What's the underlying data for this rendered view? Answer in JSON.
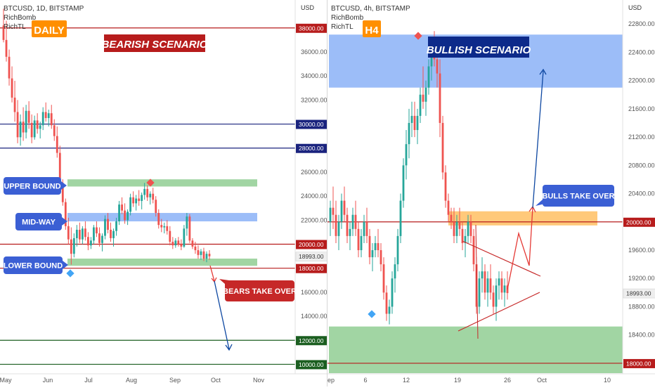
{
  "chart_data": [
    {
      "type": "candlestick",
      "symbol_line": "BTCUSD, 1D, BITSTAMP",
      "indicators": [
        "RichBomb",
        "RichTL"
      ],
      "timeframe_badge": "DAILY",
      "scenario_label": "BEARISH SCENARIO",
      "price_scale_unit": "USD",
      "x_ticks": [
        "May",
        "Jun",
        "Jul",
        "Aug",
        "Sep",
        "Oct",
        "Nov"
      ],
      "y_ticks": [
        10000,
        12000,
        14000,
        16000,
        18000,
        20000,
        22000,
        24000,
        26000,
        28000,
        30000,
        32000,
        34000,
        36000,
        38000
      ],
      "ylim": [
        9500,
        39800
      ],
      "price_lines": [
        {
          "price": 38000,
          "color": "#b71c1c",
          "label": "38000.00"
        },
        {
          "price": 30000,
          "color": "#1a237e",
          "label": "30000.00"
        },
        {
          "price": 28000,
          "color": "#1a237e",
          "label": "28000.00"
        },
        {
          "price": 20000,
          "color": "#b71c1c",
          "label": "20000.00"
        },
        {
          "price": 18000,
          "color": "#b71c1c",
          "label": "18000.00"
        },
        {
          "price": 12000,
          "color": "#1b5e20",
          "label": "12000.00"
        },
        {
          "price": 10000,
          "color": "#1b5e20",
          "label": "10000.00"
        }
      ],
      "last_price": "18993.00",
      "zones": [
        {
          "name": "upper",
          "from": 24800,
          "to": 25400,
          "color": "#81c784"
        },
        {
          "name": "mid",
          "from": 21900,
          "to": 22600,
          "color": "#7ba7f5"
        },
        {
          "name": "lower",
          "from": 18200,
          "to": 18800,
          "color": "#81c784"
        }
      ],
      "callouts": [
        "UPPER BOUND",
        "MID-WAY",
        "LOWER BOUND",
        "BEARS TAKE OVER"
      ],
      "candles": [
        [
          38200,
          39600,
          36800,
          37000
        ],
        [
          37000,
          38600,
          35200,
          35600
        ],
        [
          35600,
          36200,
          33200,
          33800
        ],
        [
          33800,
          34800,
          31800,
          32200
        ],
        [
          32200,
          33600,
          30200,
          31000
        ],
        [
          31000,
          32000,
          28400,
          28900
        ],
        [
          28900,
          30800,
          28200,
          30200
        ],
        [
          30200,
          31400,
          28600,
          29300
        ],
        [
          29300,
          31600,
          28800,
          31100
        ],
        [
          31100,
          31900,
          29600,
          30100
        ],
        [
          30100,
          30800,
          28400,
          28900
        ],
        [
          28900,
          30700,
          28700,
          30300
        ],
        [
          30300,
          30900,
          29200,
          29600
        ],
        [
          29600,
          30200,
          28800,
          29900
        ],
        [
          29900,
          31400,
          29500,
          31000
        ],
        [
          31000,
          31800,
          30200,
          30500
        ],
        [
          30500,
          31200,
          29800,
          30900
        ],
        [
          30900,
          31600,
          29600,
          29900
        ],
        [
          29900,
          30400,
          28600,
          29000
        ],
        [
          29000,
          29800,
          27200,
          27600
        ],
        [
          27600,
          28200,
          24600,
          25100
        ],
        [
          25100,
          25400,
          23200,
          23500
        ],
        [
          23500,
          23800,
          21200,
          21500
        ],
        [
          21500,
          22200,
          20000,
          20400
        ],
        [
          20400,
          21400,
          18300,
          19200
        ],
        [
          19200,
          20900,
          18900,
          20500
        ],
        [
          20500,
          21600,
          19800,
          21200
        ],
        [
          21200,
          21800,
          20100,
          20400
        ],
        [
          20400,
          21500,
          20000,
          21300
        ],
        [
          21300,
          21900,
          20300,
          20600
        ],
        [
          20600,
          21000,
          19500,
          19900
        ],
        [
          19900,
          20600,
          19600,
          20300
        ],
        [
          20300,
          21600,
          20000,
          21400
        ],
        [
          21400,
          21900,
          20600,
          20900
        ],
        [
          20900,
          21400,
          19800,
          20100
        ],
        [
          20100,
          20900,
          19400,
          20700
        ],
        [
          20700,
          22400,
          20400,
          22100
        ],
        [
          22100,
          22600,
          20900,
          21200
        ],
        [
          21200,
          21800,
          20200,
          20500
        ],
        [
          20500,
          21300,
          19800,
          21100
        ],
        [
          21100,
          22200,
          20700,
          21900
        ],
        [
          21900,
          23600,
          21600,
          23300
        ],
        [
          23300,
          23900,
          22500,
          22800
        ],
        [
          22800,
          23400,
          21700,
          22000
        ],
        [
          22000,
          22900,
          21600,
          22700
        ],
        [
          22700,
          24200,
          22400,
          23900
        ],
        [
          23900,
          24400,
          23100,
          23400
        ],
        [
          23400,
          24100,
          22800,
          23800
        ],
        [
          23800,
          24500,
          23200,
          23600
        ],
        [
          23600,
          24300,
          22900,
          24100
        ],
        [
          24100,
          25100,
          23700,
          24600
        ],
        [
          24600,
          24900,
          23600,
          23900
        ],
        [
          23900,
          24400,
          23300,
          24200
        ],
        [
          24200,
          24700,
          23400,
          23700
        ],
        [
          23700,
          24000,
          22300,
          22600
        ],
        [
          22600,
          22900,
          21300,
          21600
        ],
        [
          21600,
          22100,
          21000,
          21400
        ],
        [
          21400,
          21800,
          20900,
          21500
        ],
        [
          21500,
          22000,
          20800,
          21100
        ],
        [
          21100,
          21500,
          19900,
          20200
        ],
        [
          20200,
          20600,
          19600,
          19900
        ],
        [
          19900,
          20500,
          19700,
          20300
        ],
        [
          20300,
          20600,
          19800,
          20000
        ],
        [
          20000,
          20400,
          19500,
          19800
        ],
        [
          19800,
          21600,
          19700,
          21300
        ],
        [
          21300,
          22600,
          20700,
          22300
        ],
        [
          22300,
          22500,
          20100,
          20300
        ],
        [
          20300,
          20500,
          19600,
          19800
        ],
        [
          19800,
          20200,
          19200,
          19500
        ],
        [
          19500,
          19900,
          18800,
          19100
        ],
        [
          19100,
          19600,
          18700,
          19400
        ],
        [
          19400,
          19700,
          18600,
          18800
        ],
        [
          18800,
          19400,
          18500,
          19200
        ],
        [
          19200,
          19500,
          18700,
          18993
        ]
      ]
    },
    {
      "type": "candlestick",
      "symbol_line": "BTCUSD, 4h, BITSTAMP",
      "indicators": [
        "RichBomb",
        "RichTL"
      ],
      "timeframe_badge": "H4",
      "scenario_label": "BULLISH SCENARIO",
      "price_scale_unit": "USD",
      "x_ticks": [
        "ep",
        "6",
        "12",
        "19",
        "26",
        "Oct",
        "10"
      ],
      "y_ticks": [
        18000,
        18400,
        18800,
        19200,
        19600,
        20000,
        20400,
        20800,
        21200,
        21600,
        22000,
        22400,
        22800
      ],
      "ylim": [
        17900,
        23050
      ],
      "price_lines": [
        {
          "price": 20000,
          "color": "#b71c1c",
          "label": "20000.00"
        },
        {
          "price": 18000,
          "color": "#b71c1c",
          "label": "18000.00"
        }
      ],
      "last_price": "18993.00",
      "zones": [
        {
          "name": "supply",
          "from": 21900,
          "to": 22650,
          "color": "#7ba7f5"
        },
        {
          "name": "breakout",
          "from": 19950,
          "to": 20150,
          "color": "#ffb74d"
        },
        {
          "name": "demand",
          "from": 17860,
          "to": 18520,
          "color": "#81c784"
        }
      ],
      "callouts": [
        "BULLS TAKE OVER"
      ],
      "candles": [
        [
          20000,
          20300,
          19800,
          20200
        ],
        [
          20200,
          20500,
          19900,
          20100
        ],
        [
          20100,
          20300,
          19700,
          19800
        ],
        [
          19800,
          20100,
          19600,
          20000
        ],
        [
          20000,
          20400,
          19900,
          20300
        ],
        [
          20300,
          20500,
          20000,
          20100
        ],
        [
          20100,
          20200,
          19700,
          19800
        ],
        [
          19800,
          20000,
          19600,
          19900
        ],
        [
          19900,
          20200,
          19800,
          20100
        ],
        [
          20100,
          20300,
          19800,
          19900
        ],
        [
          19900,
          20000,
          19500,
          19600
        ],
        [
          19600,
          19900,
          19500,
          19800
        ],
        [
          19800,
          20100,
          19700,
          20000
        ],
        [
          20000,
          20200,
          19700,
          19800
        ],
        [
          19800,
          19900,
          19400,
          19500
        ],
        [
          19500,
          19700,
          19300,
          19600
        ],
        [
          19600,
          19800,
          19500,
          19700
        ],
        [
          19700,
          19900,
          19500,
          19600
        ],
        [
          19600,
          19700,
          19300,
          19400
        ],
        [
          19400,
          19500,
          18900,
          19000
        ],
        [
          19000,
          19100,
          18600,
          18700
        ],
        [
          18700,
          18900,
          18550,
          18800
        ],
        [
          18800,
          19300,
          18700,
          19200
        ],
        [
          19200,
          19500,
          19000,
          19400
        ],
        [
          19400,
          19900,
          19300,
          19800
        ],
        [
          19800,
          20400,
          19700,
          20300
        ],
        [
          20300,
          20900,
          20200,
          20800
        ],
        [
          20800,
          21300,
          20600,
          21100
        ],
        [
          21100,
          21600,
          20900,
          21400
        ],
        [
          21400,
          21700,
          21200,
          21500
        ],
        [
          21500,
          21700,
          21200,
          21300
        ],
        [
          21300,
          21600,
          21100,
          21500
        ],
        [
          21500,
          21900,
          21400,
          21800
        ],
        [
          21800,
          22200,
          21600,
          21700
        ],
        [
          21700,
          22000,
          21500,
          21900
        ],
        [
          21900,
          22300,
          21800,
          22200
        ],
        [
          22200,
          22500,
          22000,
          22400
        ],
        [
          22400,
          22700,
          22200,
          22300
        ],
        [
          22300,
          22500,
          21900,
          22100
        ],
        [
          22100,
          22300,
          21200,
          21400
        ],
        [
          21400,
          21500,
          20600,
          20700
        ],
        [
          20700,
          20800,
          20200,
          20300
        ],
        [
          20300,
          20400,
          20000,
          20100
        ],
        [
          20100,
          20200,
          19900,
          20000
        ],
        [
          20000,
          20200,
          19700,
          19800
        ],
        [
          19800,
          20100,
          19700,
          20000
        ],
        [
          20000,
          20200,
          19800,
          19900
        ],
        [
          19900,
          20000,
          19600,
          19700
        ],
        [
          19700,
          19900,
          19500,
          19800
        ],
        [
          19800,
          20100,
          19700,
          20000
        ],
        [
          20000,
          20100,
          19700,
          19800
        ],
        [
          19800,
          19900,
          19300,
          19400
        ],
        [
          19400,
          19500,
          18700,
          18800
        ],
        [
          18800,
          19300,
          18700,
          19200
        ],
        [
          19200,
          19500,
          19000,
          19300
        ],
        [
          19300,
          19400,
          18900,
          19000
        ],
        [
          19000,
          19300,
          18800,
          19200
        ],
        [
          19200,
          19400,
          18900,
          19000
        ],
        [
          19000,
          19100,
          18700,
          18800
        ],
        [
          18800,
          19200,
          18600,
          19100
        ],
        [
          19100,
          19300,
          18900,
          19200
        ],
        [
          19200,
          19300,
          18900,
          19000
        ],
        [
          19000,
          19200,
          18800,
          19100
        ],
        [
          19100,
          19300,
          18900,
          18993
        ]
      ]
    }
  ]
}
